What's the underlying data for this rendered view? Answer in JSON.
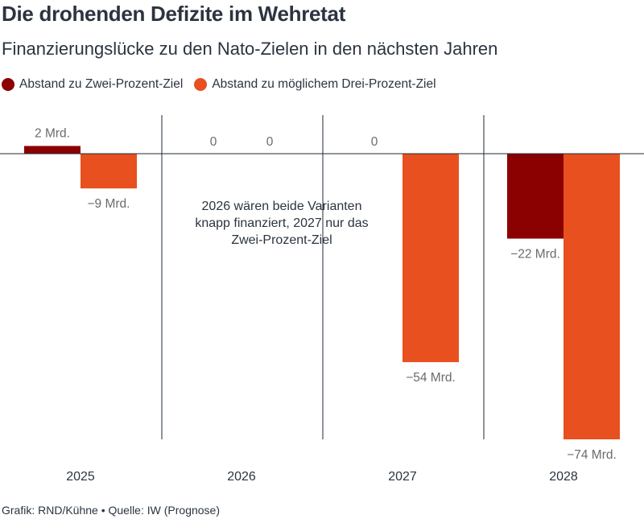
{
  "title": "Die drohenden Defizite im Wehretat",
  "subtitle": "Finanzierungslücke zu den Nato-Zielen in den nächsten Jahren",
  "footer": "Grafik: RND/Kühne • Quelle: IW (Prognose)",
  "colors": {
    "series1": "#8b0000",
    "series2": "#e8501f",
    "text": "#2b3440",
    "label": "#6b6b6b",
    "axis": "#1f2a37"
  },
  "chart_data": {
    "type": "bar",
    "categories": [
      "2025",
      "2026",
      "2027",
      "2028"
    ],
    "series": [
      {
        "name": "Abstand zu Zwei-Prozent-Ziel",
        "values": [
          2,
          0,
          0,
          -22
        ],
        "labels": [
          "2 Mrd.",
          "0",
          "0",
          "−22 Mrd."
        ]
      },
      {
        "name": "Abstand zu möglichem Drei-Prozent-Ziel",
        "values": [
          -9,
          0,
          -54,
          -74
        ],
        "labels": [
          "−9 Mrd.",
          "0",
          "−54 Mrd.",
          "−74 Mrd."
        ]
      }
    ],
    "annotation": "2026 wären beide Varianten knapp finanziert, 2027 nur das Zwei-Prozent-Ziel",
    "ylim": [
      -74,
      2
    ],
    "legend_position": "top-left",
    "grid": false
  }
}
